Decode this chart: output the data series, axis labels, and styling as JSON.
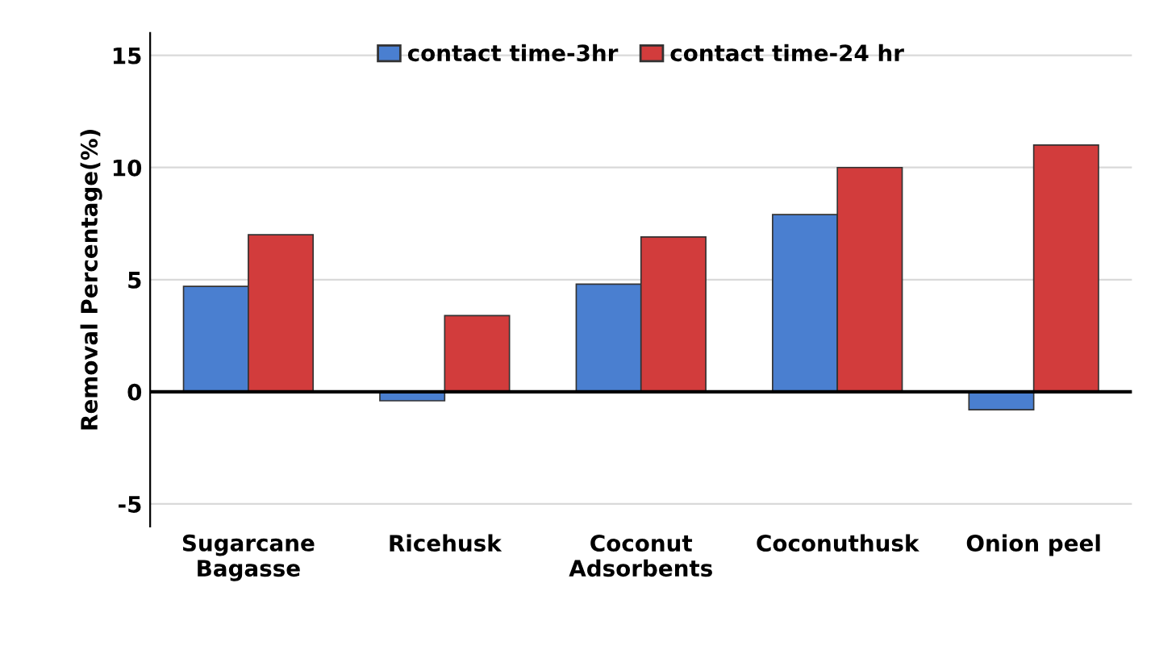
{
  "chart_data": {
    "type": "bar",
    "ylabel": "Removal Percentage(%)",
    "categories": [
      "Sugarcane\nBagasse",
      "Ricehusk",
      "Coconut\nAdsorbents",
      "Coconuthusk",
      "Onion peel"
    ],
    "series": [
      {
        "name": "contact time-3hr",
        "color": "#4a7fd0",
        "values": [
          4.7,
          -0.4,
          4.8,
          7.9,
          -0.8
        ]
      },
      {
        "name": "contact time-24 hr",
        "color": "#d23c3c",
        "values": [
          7.0,
          3.4,
          6.9,
          10.0,
          11.0
        ]
      }
    ],
    "ylim": [
      -6,
      16
    ],
    "yticks": [
      -5,
      0,
      5,
      10,
      15
    ],
    "grid": "y",
    "legend": "top"
  }
}
